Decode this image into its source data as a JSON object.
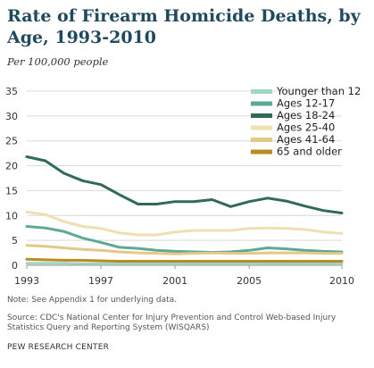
{
  "chart_data": {
    "type": "line",
    "title": "Rate of Firearm Homicide Deaths, by Age, 1993-2010",
    "subtitle": "Per 100,000 people",
    "x": [
      1993,
      1994,
      1995,
      1996,
      1997,
      1998,
      1999,
      2000,
      2001,
      2002,
      2003,
      2004,
      2005,
      2006,
      2007,
      2008,
      2009,
      2010
    ],
    "x_tick_labels": [
      "1993",
      "1997",
      "2001",
      "2005",
      "2010"
    ],
    "x_tick_values": [
      1993,
      1997,
      2001,
      2005,
      2010
    ],
    "ylim": [
      0,
      35
    ],
    "y_ticks": [
      0,
      5,
      10,
      15,
      20,
      25,
      30,
      35
    ],
    "grid": "horizontal",
    "legend_position": "top-right",
    "series": [
      {
        "name": "Younger than 12",
        "color": "#9fd4c6",
        "values": [
          0.4,
          0.4,
          0.4,
          0.35,
          0.3,
          0.3,
          0.3,
          0.3,
          0.3,
          0.3,
          0.3,
          0.3,
          0.3,
          0.3,
          0.3,
          0.3,
          0.3,
          0.3
        ]
      },
      {
        "name": "Ages 12-17",
        "color": "#5ea896",
        "values": [
          7.8,
          7.5,
          6.8,
          5.5,
          4.6,
          3.6,
          3.4,
          3.0,
          2.8,
          2.7,
          2.6,
          2.7,
          3.0,
          3.5,
          3.3,
          3.0,
          2.8,
          2.7
        ]
      },
      {
        "name": "Ages 18-24",
        "color": "#2f6b57",
        "values": [
          21.8,
          21.0,
          18.5,
          17.0,
          16.2,
          14.2,
          12.3,
          12.3,
          12.8,
          12.8,
          13.2,
          11.8,
          12.8,
          13.5,
          12.9,
          11.9,
          11.0,
          10.5
        ]
      },
      {
        "name": "Ages 25-40",
        "color": "#f0dfb0",
        "values": [
          10.7,
          10.2,
          8.8,
          7.8,
          7.4,
          6.5,
          6.1,
          6.1,
          6.7,
          7.0,
          7.0,
          7.0,
          7.4,
          7.5,
          7.4,
          7.2,
          6.7,
          6.4
        ]
      },
      {
        "name": "Ages 41-64",
        "color": "#e3c987",
        "values": [
          4.0,
          3.8,
          3.5,
          3.2,
          3.0,
          2.7,
          2.5,
          2.4,
          2.3,
          2.4,
          2.5,
          2.4,
          2.4,
          2.5,
          2.5,
          2.5,
          2.4,
          2.4
        ]
      },
      {
        "name": "65 and older",
        "color": "#b98c22",
        "values": [
          1.2,
          1.1,
          1.0,
          1.0,
          0.9,
          0.8,
          0.8,
          0.8,
          0.8,
          0.8,
          0.8,
          0.8,
          0.8,
          0.8,
          0.8,
          0.8,
          0.8,
          0.8
        ]
      }
    ]
  },
  "footer": {
    "note": "Note: See Appendix 1 for underlying data.",
    "source": "Source: CDC's National Center for Injury Prevention and Control Web-based Injury Statistics Query and Reporting System (WISQARS)",
    "credit": "PEW RESEARCH CENTER"
  }
}
